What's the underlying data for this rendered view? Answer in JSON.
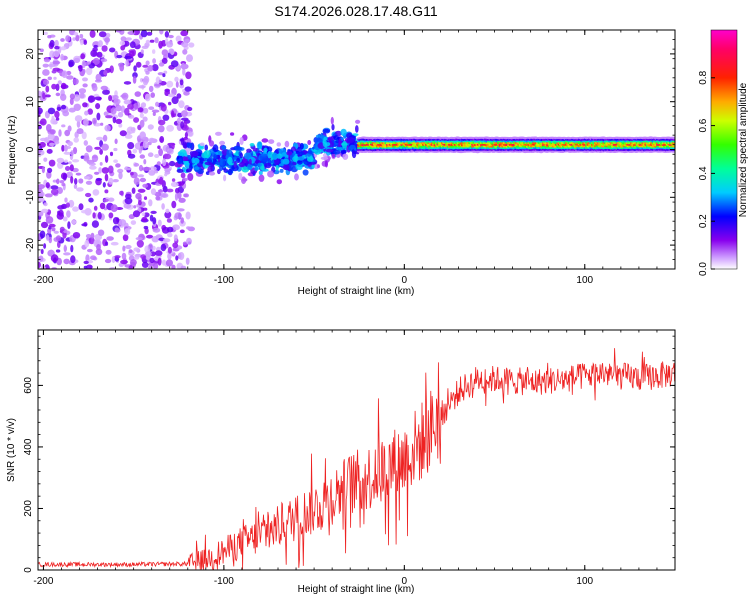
{
  "title": "S174.2026.028.17.48.G11",
  "chart_data": [
    {
      "type": "heatmap",
      "title": "S174.2026.028.17.48.G11",
      "xlabel": "Height of straight line (km)",
      "ylabel": "Frequency (Hz)",
      "xlim": [
        -203,
        150
      ],
      "ylim": [
        -25,
        25
      ],
      "xticks": [
        -200,
        -100,
        0,
        100
      ],
      "yticks": [
        20,
        10,
        0,
        -10,
        -20
      ],
      "colorbar": {
        "label": "Normalized spectral amplitude",
        "range": [
          0.0,
          1.0
        ],
        "ticks": [
          0.0,
          0.2,
          0.4,
          0.6,
          0.8
        ],
        "tick_labels": [
          "0.0",
          "0.2",
          "0.4",
          "0.6",
          "0.8"
        ],
        "colors": [
          "#ffffff",
          "#cc99ff",
          "#6600ee",
          "#0000ff",
          "#00ccff",
          "#00ff66",
          "#66ff00",
          "#ffff00",
          "#ff8800",
          "#ff0000",
          "#ff00aa"
        ]
      },
      "regions": [
        {
          "x_range": [
            -203,
            -120
          ],
          "description": "broadband noise spanning full frequency range",
          "amplitude": 0.1
        },
        {
          "x_range": [
            -120,
            -25
          ],
          "description": "scattered signal near 0 Hz",
          "freq_center": 0,
          "amplitude": 0.25
        },
        {
          "x_range": [
            -25,
            150
          ],
          "description": "narrow coherent line near 1 Hz",
          "freq_center": 1,
          "amplitude": 0.7
        }
      ]
    },
    {
      "type": "line",
      "title": "",
      "xlabel": "Height of straight line (km)",
      "ylabel": "SNR (10 * v/v)",
      "xlim": [
        -203,
        150
      ],
      "ylim": [
        0,
        780
      ],
      "xticks": [
        -200,
        -100,
        0,
        100
      ],
      "yticks": [
        0,
        200,
        400,
        600
      ],
      "color": "#ee2222",
      "series": [
        {
          "name": "SNR",
          "x": [
            -203,
            -180,
            -150,
            -120,
            -110,
            -100,
            -90,
            -80,
            -70,
            -60,
            -50,
            -40,
            -30,
            -20,
            -10,
            0,
            10,
            20,
            30,
            40,
            50,
            60,
            70,
            80,
            90,
            100,
            110,
            120,
            130,
            140,
            150
          ],
          "values": [
            18,
            18,
            18,
            20,
            35,
            60,
            90,
            110,
            140,
            170,
            200,
            240,
            280,
            300,
            330,
            360,
            420,
            500,
            580,
            620,
            620,
            615,
            610,
            615,
            620,
            630,
            640,
            630,
            625,
            630,
            640
          ]
        }
      ]
    }
  ]
}
